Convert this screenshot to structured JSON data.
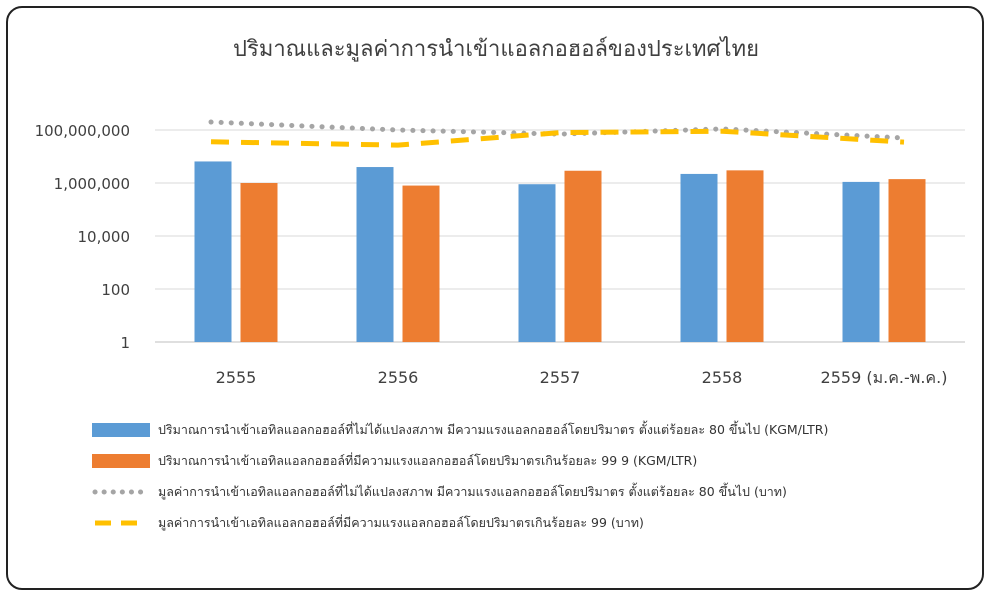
{
  "chart_data": {
    "type": "bar",
    "title": "ปริมาณและมูลค่าการนำเข้าแอลกอฮอล์ของประเทศไทย",
    "categories": [
      "2555",
      "2556",
      "2557",
      "2558",
      "2559 (ม.ค.-พ.ค.)"
    ],
    "y_scale": "log",
    "ylim": [
      1,
      100000000
    ],
    "y_ticks": [
      1,
      100,
      10000,
      1000000,
      100000000
    ],
    "y_tick_labels": [
      "1",
      "100",
      "10,000",
      "1,000,000",
      "100,000,000"
    ],
    "grid": true,
    "legend_position": "bottom",
    "series": [
      {
        "name": "ปริมาณการนำเข้าเอทิลแอลกอฮอล์ที่ไม่ได้แปลงสภาพ มีความแรงแอลกอฮอล์โดยปริมาตร ตั้งแต่ร้อยละ 80 ขึ้นไป (KGM/LTR)",
        "type": "bar",
        "color": "#5B9BD5",
        "values": [
          6500000,
          4000000,
          900000,
          2200000,
          1100000
        ]
      },
      {
        "name": "ปริมาณการนำเข้าเอทิลแอลกอฮอล์ที่มีความแรงแอลกอฮอล์โดยปริมาตรเกินร้อยละ 99 9 (KGM/LTR)",
        "type": "bar",
        "color": "#ED7D31",
        "values": [
          1000000,
          800000,
          2900000,
          3000000,
          1400000
        ]
      },
      {
        "name": "มูลค่าการนำเข้าเอทิลแอลกอฮอล์ที่ไม่ได้แปลงสภาพ มีความแรงแอลกอฮอล์โดยปริมาตร ตั้งแต่ร้อยละ 80 ขึ้นไป (บาท)",
        "type": "line",
        "style": "dotted",
        "color": "#A5A5A5",
        "values": [
          200000000,
          100000000,
          70000000,
          110000000,
          50000000
        ]
      },
      {
        "name": "มูลค่าการนำเข้าเอทิลแอลกอฮอล์ที่มีความแรงแอลกอฮอล์โดยปริมาตรเกินร้อยละ 99  (บาท)",
        "type": "line",
        "style": "dashed",
        "color": "#FFC000",
        "values": [
          36000000,
          27000000,
          80000000,
          90000000,
          35000000
        ]
      }
    ]
  }
}
